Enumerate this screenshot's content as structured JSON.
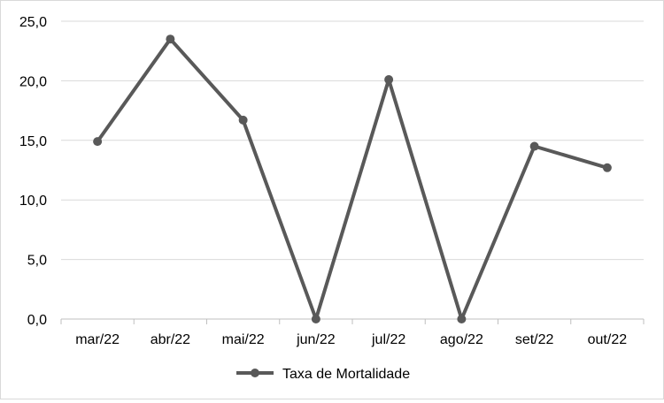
{
  "chart_data": {
    "type": "line",
    "title": "",
    "xlabel": "",
    "ylabel": "",
    "categories": [
      "mar/22",
      "abr/22",
      "mai/22",
      "jun/22",
      "jul/22",
      "ago/22",
      "set/22",
      "out/22"
    ],
    "series": [
      {
        "name": "Taxa de Mortalidade",
        "values": [
          14.9,
          23.5,
          16.7,
          0.0,
          20.1,
          0.0,
          14.5,
          12.7
        ],
        "color": "#595959"
      }
    ],
    "ylim": [
      0,
      25
    ],
    "yticks": [
      "0,0",
      "5,0",
      "10,0",
      "15,0",
      "20,0",
      "25,0"
    ],
    "grid": true,
    "legend": "bottom-center"
  }
}
